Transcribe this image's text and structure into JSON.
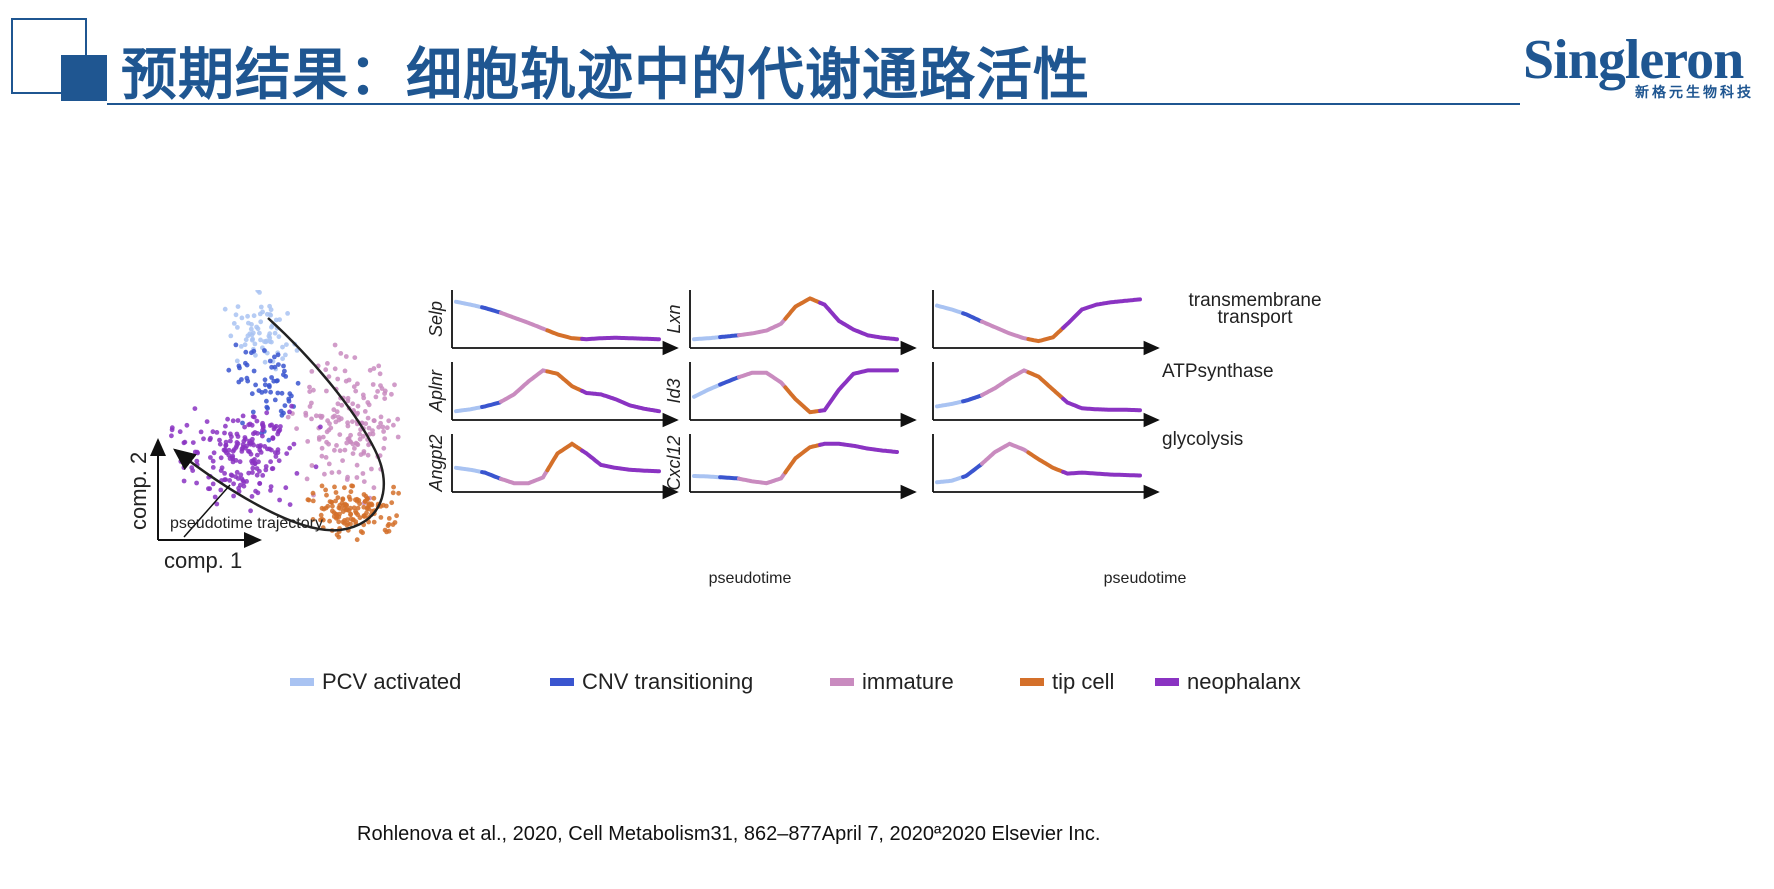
{
  "slide": {
    "title": "预期结果：细胞轨迹中的代谢通路活性",
    "logo": {
      "wordmark": "Singleron",
      "subtitle": "新格元生物科技"
    },
    "citation": "Rohlenova et al., 2020, Cell Metabolism31, 862–877April 7, 2020ª2020 Elsevier Inc."
  },
  "figure": {
    "scatter": {
      "xlabel": "comp. 1",
      "ylabel": "comp. 2",
      "annotation": "pseudotime trajectory"
    },
    "panel_xlabel": "pseudotime",
    "legend": [
      {
        "label": "PCV activated",
        "color": "#a9c3f2"
      },
      {
        "label": "CNV transitioning",
        "color": "#3a55cf"
      },
      {
        "label": "immature",
        "color": "#c98bbf"
      },
      {
        "label": "tip cell",
        "color": "#d4702a"
      },
      {
        "label": "neophalanx",
        "color": "#8a33c2"
      }
    ]
  },
  "chart_data": {
    "type": "line",
    "x_label": "pseudotime",
    "state_colors": [
      "#a9c3f2",
      "#3a55cf",
      "#c98bbf",
      "#d4702a",
      "#8a33c2"
    ],
    "state_breaks": [
      0,
      0.13,
      0.22,
      0.45,
      0.62,
      1
    ],
    "panels": [
      {
        "gene": "Selp",
        "y": [
          0.88,
          0.82,
          0.75,
          0.66,
          0.55,
          0.44,
          0.32,
          0.2,
          0.12,
          0.1,
          0.12,
          0.13,
          0.12,
          0.11,
          0.1
        ]
      },
      {
        "gene": "Lxn",
        "y": [
          0.1,
          0.12,
          0.15,
          0.18,
          0.22,
          0.28,
          0.42,
          0.78,
          0.95,
          0.82,
          0.48,
          0.3,
          0.18,
          0.13,
          0.1
        ]
      },
      {
        "gene": "",
        "y": [
          0.8,
          0.72,
          0.62,
          0.48,
          0.35,
          0.22,
          0.12,
          0.06,
          0.14,
          0.42,
          0.72,
          0.82,
          0.87,
          0.9,
          0.93
        ]
      },
      {
        "gene": "Aplnr",
        "y": [
          0.1,
          0.14,
          0.2,
          0.28,
          0.45,
          0.72,
          0.95,
          0.88,
          0.62,
          0.48,
          0.45,
          0.35,
          0.22,
          0.15,
          0.1
        ]
      },
      {
        "gene": "Id3",
        "y": [
          0.4,
          0.55,
          0.68,
          0.8,
          0.9,
          0.9,
          0.7,
          0.35,
          0.08,
          0.12,
          0.55,
          0.88,
          0.95,
          0.95,
          0.95
        ]
      },
      {
        "gene": "",
        "y": [
          0.2,
          0.25,
          0.32,
          0.42,
          0.58,
          0.78,
          0.95,
          0.82,
          0.55,
          0.28,
          0.16,
          0.14,
          0.13,
          0.13,
          0.12
        ]
      },
      {
        "gene": "Angpt2",
        "y": [
          0.42,
          0.38,
          0.32,
          0.2,
          0.1,
          0.1,
          0.22,
          0.72,
          0.92,
          0.72,
          0.48,
          0.42,
          0.38,
          0.36,
          0.35
        ]
      },
      {
        "gene": "Cxcl12",
        "y": [
          0.25,
          0.24,
          0.22,
          0.2,
          0.14,
          0.1,
          0.2,
          0.62,
          0.85,
          0.92,
          0.92,
          0.88,
          0.82,
          0.78,
          0.75
        ]
      },
      {
        "gene": "",
        "y": [
          0.12,
          0.15,
          0.25,
          0.48,
          0.75,
          0.92,
          0.8,
          0.6,
          0.42,
          0.3,
          0.32,
          0.3,
          0.28,
          0.27,
          0.26
        ]
      }
    ],
    "pathways": [
      "transmembrane\ntransport",
      "ATPsynthase",
      "glycolysis"
    ]
  }
}
